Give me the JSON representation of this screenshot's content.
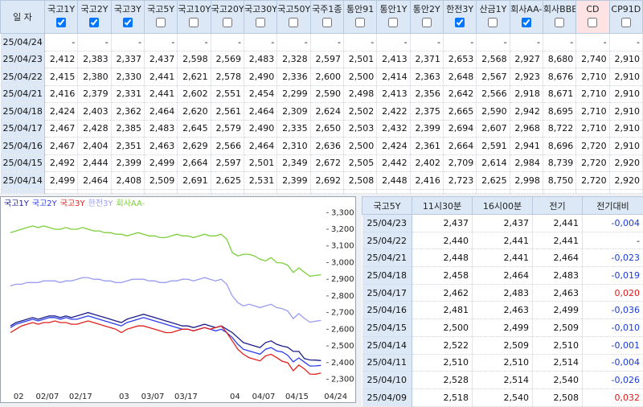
{
  "top_table": {
    "headers": [
      "일 자",
      "국고1Y",
      "국고2Y",
      "국고3Y",
      "국고5Y",
      "국고10Y",
      "국고20Y",
      "국고30Y",
      "국고50Y",
      "국주1종",
      "통안91",
      "통안1Y",
      "통안2Y",
      "한전3Y",
      "산금1Y",
      "회사AA-",
      "회사BBB-",
      "CD",
      "CP91D"
    ],
    "checked": [
      true,
      true,
      true,
      false,
      false,
      false,
      false,
      false,
      false,
      false,
      false,
      false,
      true,
      false,
      true,
      false,
      false,
      false
    ],
    "rows": [
      [
        "25/04/24",
        "-",
        "-",
        "-",
        "-",
        "-",
        "-",
        "-",
        "-",
        "-",
        "-",
        "-",
        "-",
        "-",
        "-",
        "-",
        "-",
        "-",
        "-"
      ],
      [
        "25/04/23",
        "2,412",
        "2,383",
        "2,337",
        "2,437",
        "2,598",
        "2,569",
        "2,483",
        "2,328",
        "2,597",
        "2,501",
        "2,413",
        "2,371",
        "2,653",
        "2,568",
        "2,927",
        "8,680",
        "2,740",
        "2,910"
      ],
      [
        "25/04/22",
        "2,415",
        "2,380",
        "2,330",
        "2,441",
        "2,621",
        "2,578",
        "2,490",
        "2,336",
        "2,600",
        "2,500",
        "2,414",
        "2,363",
        "2,648",
        "2,567",
        "2,923",
        "8,676",
        "2,710",
        "2,910"
      ],
      [
        "25/04/21",
        "2,416",
        "2,379",
        "2,331",
        "2,441",
        "2,602",
        "2,551",
        "2,454",
        "2,299",
        "2,590",
        "2,498",
        "2,413",
        "2,356",
        "2,642",
        "2,566",
        "2,918",
        "8,671",
        "2,710",
        "2,910"
      ],
      [
        "25/04/18",
        "2,424",
        "2,403",
        "2,362",
        "2,464",
        "2,620",
        "2,561",
        "2,464",
        "2,309",
        "2,624",
        "2,502",
        "2,422",
        "2,375",
        "2,665",
        "2,590",
        "2,942",
        "8,695",
        "2,710",
        "2,910"
      ],
      [
        "25/04/17",
        "2,467",
        "2,428",
        "2,385",
        "2,483",
        "2,645",
        "2,579",
        "2,490",
        "2,335",
        "2,650",
        "2,503",
        "2,432",
        "2,399",
        "2,694",
        "2,607",
        "2,968",
        "8,722",
        "2,710",
        "2,910"
      ],
      [
        "25/04/16",
        "2,467",
        "2,404",
        "2,351",
        "2,463",
        "2,629",
        "2,566",
        "2,464",
        "2,310",
        "2,636",
        "2,500",
        "2,424",
        "2,361",
        "2,664",
        "2,591",
        "2,941",
        "8,696",
        "2,720",
        "2,910"
      ],
      [
        "25/04/15",
        "2,492",
        "2,444",
        "2,399",
        "2,499",
        "2,664",
        "2,597",
        "2,501",
        "2,349",
        "2,672",
        "2,505",
        "2,442",
        "2,402",
        "2,709",
        "2,614",
        "2,984",
        "8,739",
        "2,720",
        "2,920"
      ],
      [
        "25/04/14",
        "2,499",
        "2,464",
        "2,408",
        "2,509",
        "2,691",
        "2,625",
        "2,531",
        "2,399",
        "2,692",
        "2,508",
        "2,448",
        "2,416",
        "2,723",
        "2,625",
        "2,998",
        "8,750",
        "2,720",
        "2,920"
      ]
    ]
  },
  "chart_data": {
    "type": "line",
    "categories": [
      null,
      "02",
      null,
      null,
      null,
      "02/07",
      null,
      null,
      null,
      null,
      null,
      "02/17",
      null,
      null,
      null,
      null,
      null,
      null,
      null,
      null,
      "03",
      null,
      null,
      null,
      "03/07",
      null,
      null,
      null,
      null,
      null,
      "03/17",
      null,
      null,
      null,
      null,
      null,
      null,
      null,
      null,
      null,
      "04",
      null,
      null,
      null,
      "04/07",
      null,
      null,
      null,
      null,
      null,
      "04/15",
      null,
      null,
      null,
      null,
      null,
      null,
      "04/24"
    ],
    "series": [
      {
        "name": "국고1Y",
        "color": "#1c1c8a",
        "values": [
          2.62,
          2.64,
          2.65,
          2.66,
          2.67,
          2.66,
          2.67,
          2.68,
          2.68,
          2.67,
          2.68,
          2.67,
          2.68,
          2.69,
          2.7,
          2.69,
          2.68,
          2.67,
          2.66,
          2.65,
          2.64,
          2.66,
          2.67,
          2.68,
          2.69,
          2.68,
          2.67,
          2.66,
          2.65,
          2.64,
          2.63,
          2.62,
          2.62,
          2.61,
          2.62,
          2.63,
          2.62,
          2.61,
          2.62,
          2.6,
          2.58,
          2.55,
          2.52,
          2.51,
          2.5,
          2.49,
          2.52,
          2.53,
          2.51,
          2.499,
          2.492,
          2.467,
          2.467,
          2.424,
          2.416,
          2.415,
          2.412,
          null
        ]
      },
      {
        "name": "국고2Y",
        "color": "#2a3cf0",
        "values": [
          2.61,
          2.63,
          2.64,
          2.65,
          2.66,
          2.65,
          2.66,
          2.67,
          2.67,
          2.66,
          2.67,
          2.66,
          2.66,
          2.67,
          2.68,
          2.67,
          2.66,
          2.65,
          2.64,
          2.63,
          2.62,
          2.64,
          2.65,
          2.66,
          2.67,
          2.66,
          2.65,
          2.64,
          2.63,
          2.62,
          2.61,
          2.6,
          2.6,
          2.59,
          2.6,
          2.61,
          2.6,
          2.59,
          2.6,
          2.58,
          2.55,
          2.51,
          2.48,
          2.47,
          2.46,
          2.45,
          2.48,
          2.49,
          2.47,
          2.464,
          2.444,
          2.404,
          2.428,
          2.403,
          2.379,
          2.38,
          2.383,
          null
        ]
      },
      {
        "name": "국고3Y",
        "color": "#e0201c",
        "values": [
          2.58,
          2.6,
          2.62,
          2.63,
          2.64,
          2.63,
          2.64,
          2.64,
          2.65,
          2.64,
          2.64,
          2.63,
          2.63,
          2.64,
          2.65,
          2.64,
          2.63,
          2.62,
          2.61,
          2.6,
          2.58,
          2.6,
          2.61,
          2.62,
          2.62,
          2.61,
          2.6,
          2.59,
          2.58,
          2.58,
          2.59,
          2.6,
          2.6,
          2.59,
          2.6,
          2.61,
          2.6,
          2.61,
          2.62,
          2.58,
          2.53,
          2.48,
          2.45,
          2.43,
          2.42,
          2.41,
          2.44,
          2.45,
          2.43,
          2.408,
          2.399,
          2.351,
          2.385,
          2.362,
          2.331,
          2.33,
          2.337,
          null
        ]
      },
      {
        "name": "한전3Y",
        "color": "#9a9cf0",
        "values": [
          2.86,
          2.87,
          2.87,
          2.88,
          2.88,
          2.88,
          2.89,
          2.89,
          2.89,
          2.88,
          2.89,
          2.89,
          2.9,
          2.91,
          2.91,
          2.9,
          2.9,
          2.89,
          2.89,
          2.88,
          2.88,
          2.89,
          2.9,
          2.9,
          2.9,
          2.89,
          2.89,
          2.88,
          2.88,
          2.89,
          2.89,
          2.9,
          2.9,
          2.89,
          2.9,
          2.91,
          2.9,
          2.89,
          2.9,
          2.87,
          2.8,
          2.76,
          2.74,
          2.75,
          2.74,
          2.73,
          2.74,
          2.75,
          2.73,
          2.723,
          2.709,
          2.664,
          2.694,
          2.665,
          2.642,
          2.648,
          2.653,
          null
        ]
      },
      {
        "name": "회사AA-",
        "color": "#7ccf3a",
        "values": [
          3.18,
          3.19,
          3.2,
          3.21,
          3.22,
          3.21,
          3.22,
          3.21,
          3.2,
          3.2,
          3.21,
          3.2,
          3.2,
          3.21,
          3.2,
          3.19,
          3.19,
          3.18,
          3.18,
          3.17,
          3.17,
          3.16,
          3.17,
          3.18,
          3.17,
          3.16,
          3.16,
          3.15,
          3.15,
          3.16,
          3.17,
          3.16,
          3.16,
          3.15,
          3.16,
          3.17,
          3.16,
          3.16,
          3.17,
          3.14,
          3.06,
          3.04,
          3.05,
          3.05,
          3.04,
          3.02,
          3.01,
          3.03,
          3.0,
          2.998,
          2.984,
          2.941,
          2.968,
          2.942,
          2.918,
          2.923,
          2.927,
          null
        ]
      }
    ],
    "ylim": [
      2.23,
      3.34
    ],
    "yticks": [
      {
        "value": 2.3,
        "label": "2,300"
      },
      {
        "value": 2.4,
        "label": "2,400"
      },
      {
        "value": 2.5,
        "label": "2,500"
      },
      {
        "value": 2.6,
        "label": "2,600"
      },
      {
        "value": 2.7,
        "label": "2,700"
      },
      {
        "value": 2.8,
        "label": "2,800"
      },
      {
        "value": 2.9,
        "label": "2,900"
      },
      {
        "value": 3.0,
        "label": "3,000"
      },
      {
        "value": 3.1,
        "label": "3,100"
      },
      {
        "value": 3.2,
        "label": "3,200"
      },
      {
        "value": 3.3,
        "label": "3,300"
      }
    ],
    "y_axis_side": "right"
  },
  "side_table": {
    "headers": [
      "국고5Y",
      "11시30분",
      "16시00분",
      "전기",
      "전기대비"
    ],
    "rows": [
      [
        "25/04/23",
        "2,437",
        "2,437",
        "2,441",
        "-0,004"
      ],
      [
        "25/04/22",
        "2,440",
        "2,441",
        "2,441",
        "-"
      ],
      [
        "25/04/21",
        "2,448",
        "2,441",
        "2,464",
        "-0,023"
      ],
      [
        "25/04/18",
        "2,458",
        "2,464",
        "2,483",
        "-0,019"
      ],
      [
        "25/04/17",
        "2,462",
        "2,483",
        "2,463",
        "0,020"
      ],
      [
        "25/04/16",
        "2,481",
        "2,463",
        "2,499",
        "-0,036"
      ],
      [
        "25/04/15",
        "2,500",
        "2,499",
        "2,509",
        "-0,010"
      ],
      [
        "25/04/14",
        "2,522",
        "2,509",
        "2,510",
        "-0,001"
      ],
      [
        "25/04/11",
        "2,510",
        "2,510",
        "2,514",
        "-0,004"
      ],
      [
        "25/04/10",
        "2,528",
        "2,514",
        "2,540",
        "-0,026"
      ],
      [
        "25/04/09",
        "2,518",
        "2,540",
        "2,508",
        "0,032"
      ]
    ]
  }
}
